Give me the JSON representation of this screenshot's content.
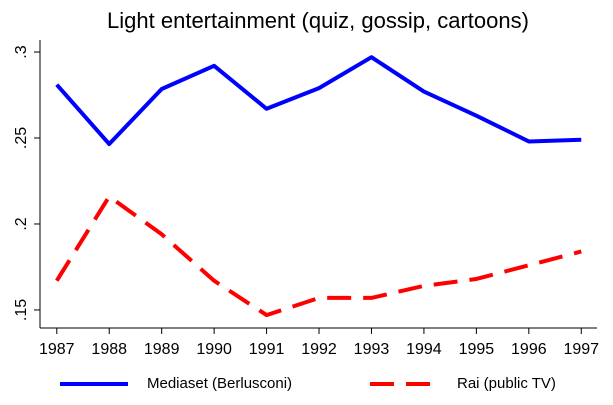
{
  "chart_data": {
    "type": "line",
    "title": "Light entertainment (quiz, gossip, cartoons)",
    "x": [
      1987,
      1988,
      1989,
      1990,
      1991,
      1992,
      1993,
      1994,
      1995,
      1996,
      1997
    ],
    "series": [
      {
        "name": "Mediaset (Berlusconi)",
        "color": "#0000ff",
        "dash": "solid",
        "values": [
          0.281,
          0.2465,
          0.2785,
          0.292,
          0.267,
          0.279,
          0.297,
          0.277,
          0.263,
          0.248,
          0.249
        ]
      },
      {
        "name": "Rai (public TV)",
        "color": "#ff0000",
        "dash": "dashed",
        "values": [
          0.167,
          0.216,
          0.194,
          0.167,
          0.147,
          0.157,
          0.157,
          0.164,
          0.168,
          0.176,
          0.184
        ]
      }
    ],
    "xlim": [
      1986.68,
      1997.3
    ],
    "xticks": [
      1987,
      1988,
      1989,
      1990,
      1991,
      1992,
      1993,
      1994,
      1995,
      1996,
      1997
    ],
    "ylim": [
      0.1395,
      0.307
    ],
    "yticks": [
      {
        "value": 0.15,
        "label": ".15"
      },
      {
        "value": 0.2,
        "label": ".2"
      },
      {
        "value": 0.25,
        "label": ".25"
      },
      {
        "value": 0.3,
        "label": ".3"
      }
    ],
    "grid": false,
    "legend": "bottom"
  }
}
